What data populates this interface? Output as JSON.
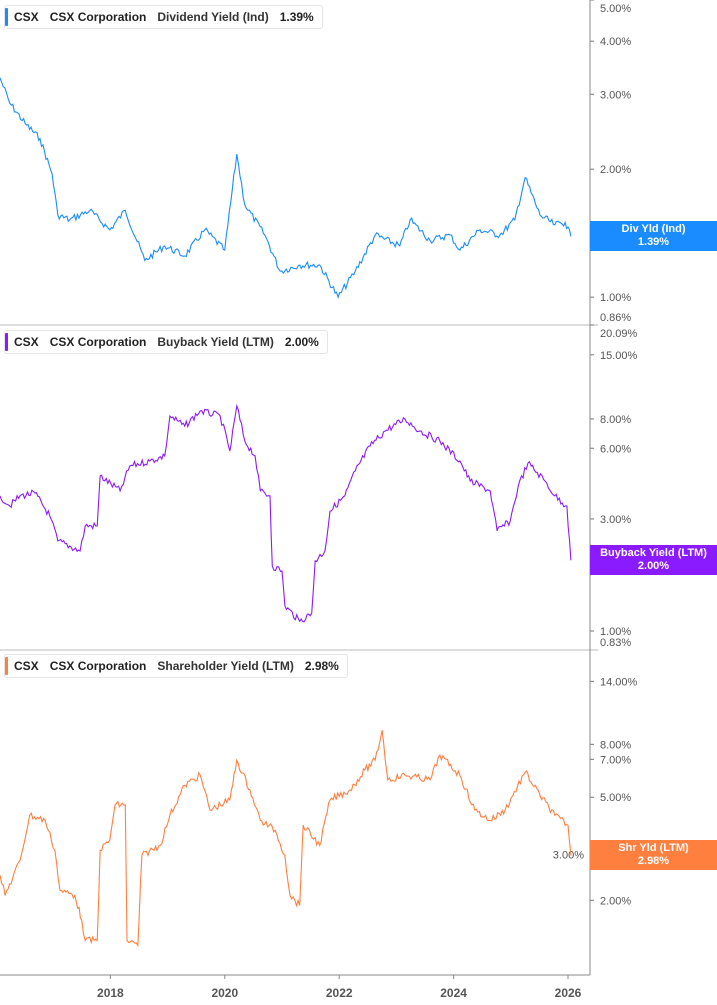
{
  "legends": [
    {
      "ticker": "CSX",
      "company": "CSX Corporation",
      "metric": "Dividend Yield (Ind)",
      "value": "1.39%"
    },
    {
      "ticker": "CSX",
      "company": "CSX Corporation",
      "metric": "Buyback Yield (LTM)",
      "value": "2.00%"
    },
    {
      "ticker": "CSX",
      "company": "CSX Corporation",
      "metric": "Shareholder Yield (LTM)",
      "value": "2.98%"
    }
  ],
  "tags": [
    {
      "label": "Div Yld (Ind)",
      "value": "1.39%"
    },
    {
      "label": "Buyback Yield (LTM)",
      "value": "2.00%"
    },
    {
      "label": "Shr Yld (LTM)",
      "value": "2.98%"
    }
  ],
  "chart_data": [
    {
      "type": "line",
      "name": "Dividend Yield (Ind)",
      "color": "#1a8cff",
      "yscale": "log",
      "ylim": [
        0.86,
        5.0
      ],
      "yticks": [
        {
          "v": 5,
          "label": "5.00%"
        },
        {
          "v": 4,
          "label": "4.00%"
        },
        {
          "v": 3,
          "label": "3.00%"
        },
        {
          "v": 2,
          "label": "2.00%"
        },
        {
          "v": 1,
          "label": "1.00%"
        },
        {
          "v": 0.86,
          "label": "0.86%"
        }
      ],
      "points": [
        [
          2016.07,
          3.28
        ],
        [
          2016.24,
          2.86
        ],
        [
          2016.51,
          2.56
        ],
        [
          2016.77,
          2.36
        ],
        [
          2016.98,
          1.95
        ],
        [
          2017.08,
          1.56
        ],
        [
          2017.29,
          1.52
        ],
        [
          2017.64,
          1.6
        ],
        [
          2017.99,
          1.44
        ],
        [
          2018.26,
          1.6
        ],
        [
          2018.6,
          1.22
        ],
        [
          2018.95,
          1.32
        ],
        [
          2019.3,
          1.25
        ],
        [
          2019.65,
          1.44
        ],
        [
          2020.0,
          1.29
        ],
        [
          2020.21,
          2.17
        ],
        [
          2020.35,
          1.65
        ],
        [
          2020.7,
          1.4
        ],
        [
          2020.97,
          1.15
        ],
        [
          2021.31,
          1.19
        ],
        [
          2021.66,
          1.19
        ],
        [
          2021.98,
          1.0
        ],
        [
          2022.28,
          1.15
        ],
        [
          2022.63,
          1.4
        ],
        [
          2023.06,
          1.32
        ],
        [
          2023.24,
          1.52
        ],
        [
          2023.59,
          1.36
        ],
        [
          2023.94,
          1.4
        ],
        [
          2024.11,
          1.29
        ],
        [
          2024.46,
          1.44
        ],
        [
          2024.81,
          1.4
        ],
        [
          2025.07,
          1.52
        ],
        [
          2025.25,
          1.91
        ],
        [
          2025.51,
          1.56
        ],
        [
          2025.77,
          1.48
        ],
        [
          2025.95,
          1.5
        ],
        [
          2026.05,
          1.39
        ]
      ]
    },
    {
      "type": "line",
      "name": "Buyback Yield (LTM)",
      "color": "#8a1aff",
      "yscale": "log",
      "ylim": [
        0.83,
        20.09
      ],
      "yticks": [
        {
          "v": 20.09,
          "label": "20.09%"
        },
        {
          "v": 15,
          "label": "15.00%"
        },
        {
          "v": 8,
          "label": "8.00%"
        },
        {
          "v": 6,
          "label": "6.00%"
        },
        {
          "v": 3,
          "label": "3.00%"
        },
        {
          "v": 1,
          "label": "1.00%"
        },
        {
          "v": 0.83,
          "label": "0.83%"
        }
      ],
      "points": [
        [
          2016.07,
          3.76
        ],
        [
          2016.24,
          3.41
        ],
        [
          2016.42,
          3.76
        ],
        [
          2016.68,
          3.87
        ],
        [
          2016.94,
          3.09
        ],
        [
          2017.08,
          2.42
        ],
        [
          2017.47,
          2.19
        ],
        [
          2017.56,
          2.8
        ],
        [
          2017.77,
          2.8
        ],
        [
          2017.82,
          4.57
        ],
        [
          2018.17,
          3.95
        ],
        [
          2018.34,
          5.04
        ],
        [
          2018.69,
          5.29
        ],
        [
          2018.95,
          5.56
        ],
        [
          2019.04,
          8.23
        ],
        [
          2019.3,
          7.45
        ],
        [
          2019.57,
          8.65
        ],
        [
          2019.92,
          8.23
        ],
        [
          2020.09,
          5.84
        ],
        [
          2020.21,
          9.08
        ],
        [
          2020.35,
          6.44
        ],
        [
          2020.53,
          5.56
        ],
        [
          2020.62,
          3.95
        ],
        [
          2020.79,
          3.76
        ],
        [
          2020.83,
          1.89
        ],
        [
          2021.0,
          1.8
        ],
        [
          2021.05,
          1.28
        ],
        [
          2021.31,
          1.1
        ],
        [
          2021.52,
          1.19
        ],
        [
          2021.58,
          1.99
        ],
        [
          2021.75,
          2.19
        ],
        [
          2021.84,
          3.24
        ],
        [
          2022.1,
          3.76
        ],
        [
          2022.28,
          4.8
        ],
        [
          2022.54,
          6.13
        ],
        [
          2022.8,
          7.1
        ],
        [
          2023.15,
          7.99
        ],
        [
          2023.41,
          7.1
        ],
        [
          2023.76,
          6.44
        ],
        [
          2024.11,
          5.29
        ],
        [
          2024.29,
          4.35
        ],
        [
          2024.64,
          3.95
        ],
        [
          2024.76,
          2.67
        ],
        [
          2024.99,
          2.94
        ],
        [
          2025.13,
          4.14
        ],
        [
          2025.3,
          5.19
        ],
        [
          2025.6,
          4.35
        ],
        [
          2025.77,
          3.76
        ],
        [
          2025.98,
          3.41
        ],
        [
          2026.05,
          2.0
        ]
      ]
    },
    {
      "type": "line",
      "name": "Shareholder Yield (LTM)",
      "color": "#ff7f3f",
      "yscale": "log",
      "ylim": [
        1.03,
        18.5
      ],
      "yticks": [
        {
          "v": 14,
          "label": "14.00%"
        },
        {
          "v": 8,
          "label": "8.00%"
        },
        {
          "v": 7,
          "label": "7.00%"
        },
        {
          "v": 5,
          "label": "5.00%"
        },
        {
          "v": 3,
          "label": "3.00%"
        },
        {
          "v": 2,
          "label": "2.00%"
        }
      ],
      "points": [
        [
          2016.07,
          2.5
        ],
        [
          2016.16,
          2.09
        ],
        [
          2016.42,
          2.85
        ],
        [
          2016.59,
          4.26
        ],
        [
          2016.86,
          4.07
        ],
        [
          2017.03,
          3.12
        ],
        [
          2017.12,
          2.18
        ],
        [
          2017.38,
          2.09
        ],
        [
          2017.5,
          1.67
        ],
        [
          2017.56,
          1.4
        ],
        [
          2017.77,
          1.4
        ],
        [
          2017.82,
          3.12
        ],
        [
          2017.99,
          3.42
        ],
        [
          2018.08,
          4.67
        ],
        [
          2018.26,
          4.67
        ],
        [
          2018.29,
          1.4
        ],
        [
          2018.48,
          1.34
        ],
        [
          2018.55,
          2.98
        ],
        [
          2018.87,
          3.26
        ],
        [
          2019.04,
          4.26
        ],
        [
          2019.3,
          5.56
        ],
        [
          2019.57,
          6.08
        ],
        [
          2019.74,
          4.46
        ],
        [
          2020.09,
          4.88
        ],
        [
          2020.21,
          6.95
        ],
        [
          2020.44,
          5.33
        ],
        [
          2020.62,
          4.07
        ],
        [
          2020.88,
          3.73
        ],
        [
          2021.05,
          2.98
        ],
        [
          2021.14,
          2.09
        ],
        [
          2021.31,
          1.91
        ],
        [
          2021.37,
          3.9
        ],
        [
          2021.66,
          3.26
        ],
        [
          2021.84,
          4.88
        ],
        [
          2022.19,
          5.33
        ],
        [
          2022.45,
          6.36
        ],
        [
          2022.63,
          6.95
        ],
        [
          2022.75,
          9.07
        ],
        [
          2022.85,
          5.83
        ],
        [
          2023.15,
          6.08
        ],
        [
          2023.59,
          5.83
        ],
        [
          2023.76,
          7.27
        ],
        [
          2024.11,
          6.08
        ],
        [
          2024.37,
          4.46
        ],
        [
          2024.64,
          4.07
        ],
        [
          2024.9,
          4.46
        ],
        [
          2025.25,
          6.25
        ],
        [
          2025.51,
          5.09
        ],
        [
          2025.77,
          4.26
        ],
        [
          2026.0,
          3.9
        ],
        [
          2026.05,
          2.98
        ]
      ]
    }
  ],
  "xaxis": {
    "range": [
      2016.07,
      2026.4
    ],
    "ticks": [
      {
        "v": 2018,
        "label": "2018"
      },
      {
        "v": 2020,
        "label": "2020"
      },
      {
        "v": 2022,
        "label": "2022"
      },
      {
        "v": 2024,
        "label": "2024"
      },
      {
        "v": 2026,
        "label": "2026"
      }
    ]
  }
}
